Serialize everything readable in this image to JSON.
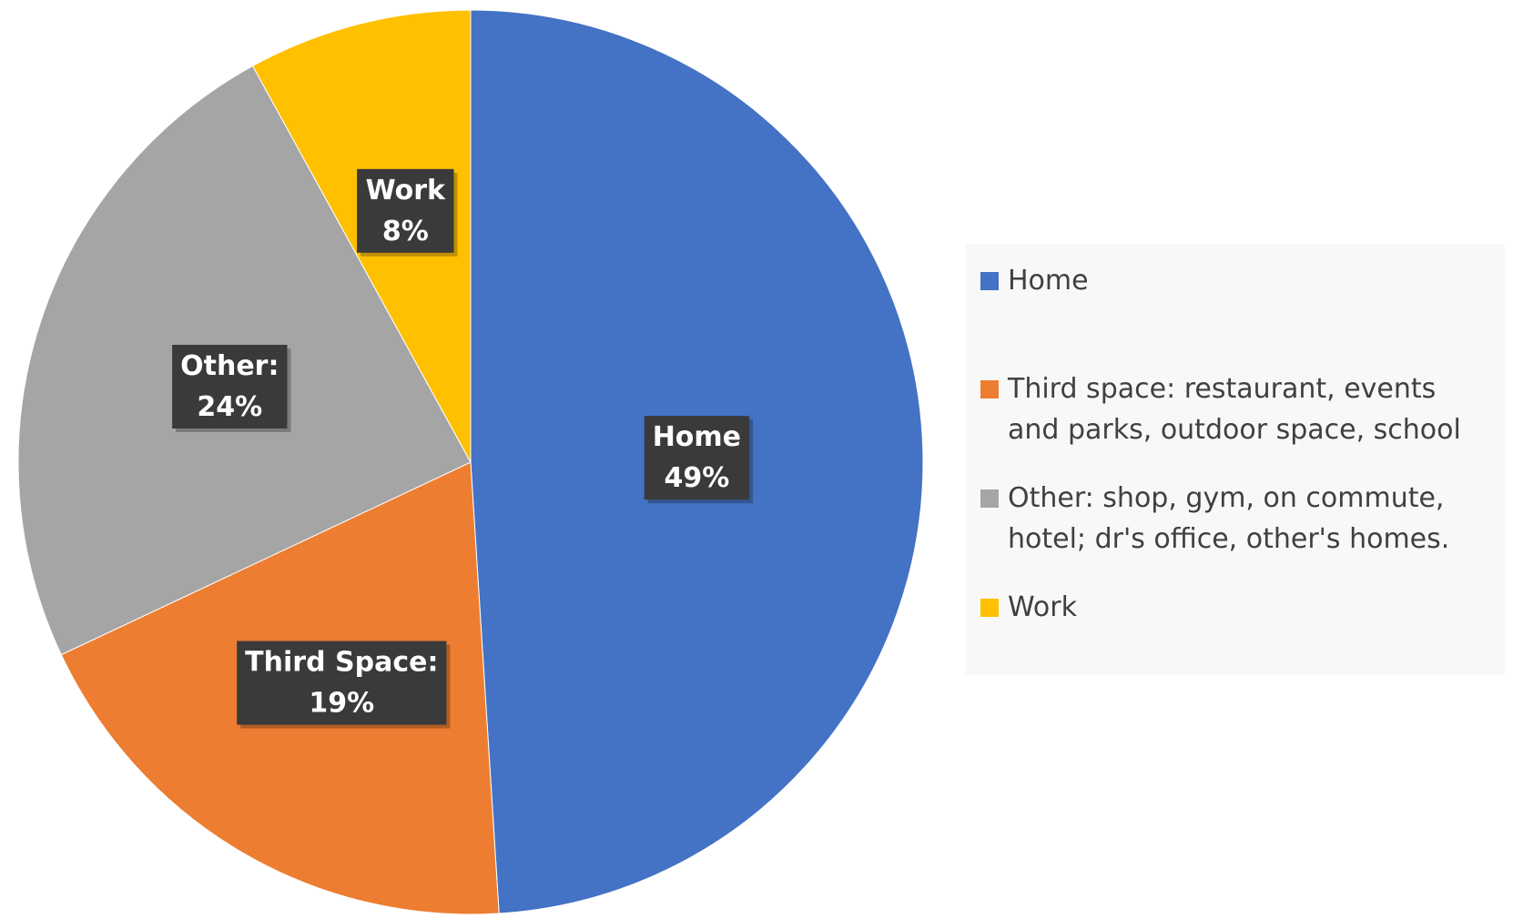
{
  "chart_data": {
    "type": "pie",
    "title": "",
    "categories": [
      "Home",
      "Third Space",
      "Other",
      "Work"
    ],
    "values": [
      49,
      19,
      24,
      8
    ],
    "units": "%",
    "start_angle_deg": 0,
    "direction": "clockwise",
    "colors": [
      "#4472C4",
      "#ED7D31",
      "#A5A5A5",
      "#FFC000"
    ],
    "data_labels": [
      {
        "line1": "Home",
        "line2": "49%"
      },
      {
        "line1": "Third Space:",
        "line2": "19%"
      },
      {
        "line1": "Other:",
        "line2": "24%"
      },
      {
        "line1": "Work",
        "line2": "8%"
      }
    ],
    "legend": {
      "placement": "right",
      "entries": [
        {
          "label": "Home",
          "color": "#4472C4"
        },
        {
          "label": "Third space: restaurant, events and parks, outdoor space, school",
          "color": "#ED7D31"
        },
        {
          "label": "Other: shop, gym, on commute, hotel; dr's office, other's homes.",
          "color": "#A5A5A5"
        },
        {
          "label": "Work",
          "color": "#FFC000"
        }
      ]
    }
  }
}
